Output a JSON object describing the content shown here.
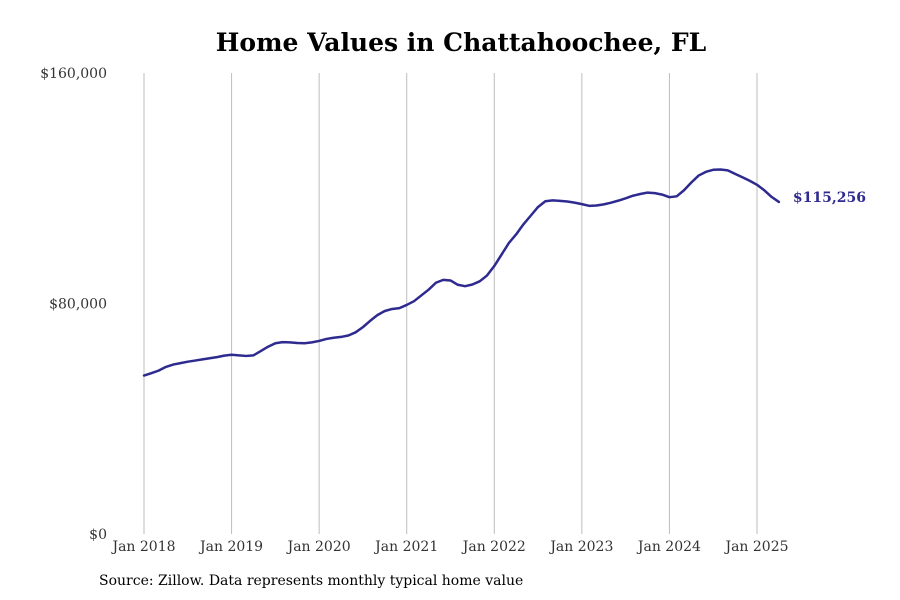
{
  "chart_data": {
    "type": "line",
    "title": "Home Values in Chattahoochee, FL",
    "xlabel": "",
    "ylabel": "",
    "x_ticks": [
      "Jan 2018",
      "Jan 2019",
      "Jan 2020",
      "Jan 2021",
      "Jan 2022",
      "Jan 2023",
      "Jan 2024",
      "Jan 2025"
    ],
    "y_ticks": [
      "$0",
      "$80,000",
      "$160,000"
    ],
    "y_tick_values": [
      0,
      80000,
      160000
    ],
    "ylim": [
      0,
      160000
    ],
    "grid": "vertical",
    "line_color": "#2e2a8f",
    "end_label": "$115,256",
    "series": [
      {
        "x": [
          "2018-01",
          "2018-02",
          "2018-03",
          "2018-04",
          "2018-05",
          "2018-06",
          "2018-07",
          "2018-08",
          "2018-09",
          "2018-10",
          "2018-11",
          "2018-12",
          "2019-01",
          "2019-02",
          "2019-03",
          "2019-04",
          "2019-05",
          "2019-06",
          "2019-07",
          "2019-08",
          "2019-09",
          "2019-10",
          "2019-11",
          "2019-12",
          "2020-01",
          "2020-02",
          "2020-03",
          "2020-04",
          "2020-05",
          "2020-06",
          "2020-07",
          "2020-08",
          "2020-09",
          "2020-10",
          "2020-11",
          "2020-12",
          "2021-01",
          "2021-02",
          "2021-03",
          "2021-04",
          "2021-05",
          "2021-06",
          "2021-07",
          "2021-08",
          "2021-09",
          "2021-10",
          "2021-11",
          "2021-12",
          "2022-01",
          "2022-02",
          "2022-03",
          "2022-04",
          "2022-05",
          "2022-06",
          "2022-07",
          "2022-08",
          "2022-09",
          "2022-10",
          "2022-11",
          "2022-12",
          "2023-01",
          "2023-02",
          "2023-03",
          "2023-04",
          "2023-05",
          "2023-06",
          "2023-07",
          "2023-08",
          "2023-09",
          "2023-10",
          "2023-11",
          "2023-12",
          "2024-01",
          "2024-02",
          "2024-03",
          "2024-04",
          "2024-05",
          "2024-06",
          "2024-07",
          "2024-08",
          "2024-09",
          "2024-10",
          "2024-11",
          "2024-12",
          "2025-01",
          "2025-02",
          "2025-03",
          "2025-04"
        ],
        "values": [
          55000,
          55800,
          56700,
          58000,
          58800,
          59300,
          59800,
          60200,
          60600,
          61000,
          61400,
          61900,
          62200,
          62000,
          61800,
          62000,
          63500,
          65000,
          66200,
          66600,
          66500,
          66300,
          66200,
          66500,
          67000,
          67700,
          68100,
          68400,
          68900,
          70000,
          71800,
          74000,
          76000,
          77400,
          78100,
          78400,
          79500,
          80800,
          82800,
          84800,
          87200,
          88200,
          88000,
          86500,
          86000,
          86600,
          87700,
          89700,
          93000,
          97000,
          101000,
          104000,
          107500,
          110500,
          113500,
          115500,
          115800,
          115600,
          115400,
          115000,
          114500,
          113900,
          114000,
          114400,
          115000,
          115700,
          116500,
          117400,
          118000,
          118500,
          118300,
          117800,
          116900,
          117200,
          119300,
          122000,
          124400,
          125700,
          126400,
          126500,
          126200,
          125000,
          123800,
          122600,
          121200,
          119300,
          117000,
          115256
        ]
      }
    ]
  },
  "footer": {
    "source": "Source: Zillow. Data represents monthly typical home value"
  }
}
